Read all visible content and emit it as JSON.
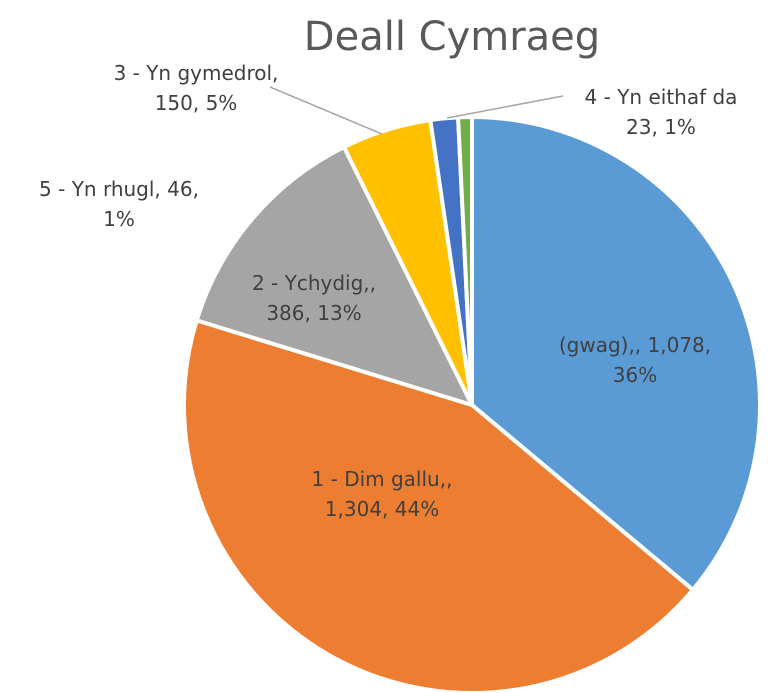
{
  "chart_data": {
    "type": "pie",
    "title": "Deall Cymraeg",
    "slices": [
      {
        "key": "gwag",
        "name": "(gwag),",
        "value": 1078,
        "percent": "36%",
        "label_lines": [
          "(gwag),, 1,078,",
          "36%"
        ],
        "color": "#5B9BD5"
      },
      {
        "key": "dim",
        "name": "1 - Dim gallu,",
        "value": 1304,
        "percent": "44%",
        "label_lines": [
          "1 - Dim gallu,,",
          "1,304, 44%"
        ],
        "color": "#ED7D31"
      },
      {
        "key": "ychydig",
        "name": "2 - Ychydig,",
        "value": 386,
        "percent": "13%",
        "label_lines": [
          "2 - Ychydig,,",
          "386, 13%"
        ],
        "color": "#A5A5A5"
      },
      {
        "key": "gymedrol",
        "name": "3 - Yn gymedrol,",
        "value": 150,
        "percent": "5%",
        "label_lines": [
          "3 - Yn gymedrol,",
          "150, 5%"
        ],
        "color": "#FFC000"
      },
      {
        "key": "rhugl",
        "name": "5 - Yn rhugl",
        "value": 46,
        "percent": "1%",
        "label_lines": [
          "5 - Yn rhugl, 46,",
          "1%"
        ],
        "color": "#4472C4"
      },
      {
        "key": "eithaf",
        "name": "4 - Yn eithaf da",
        "value": 23,
        "percent": "1%",
        "label_lines": [
          "4 - Yn eithaf da",
          "23, 1%"
        ],
        "color": "#70AD47"
      }
    ],
    "start_angle_deg": 0,
    "direction": "clockwise",
    "legend": "none",
    "data_labels": "category, value, percent"
  }
}
